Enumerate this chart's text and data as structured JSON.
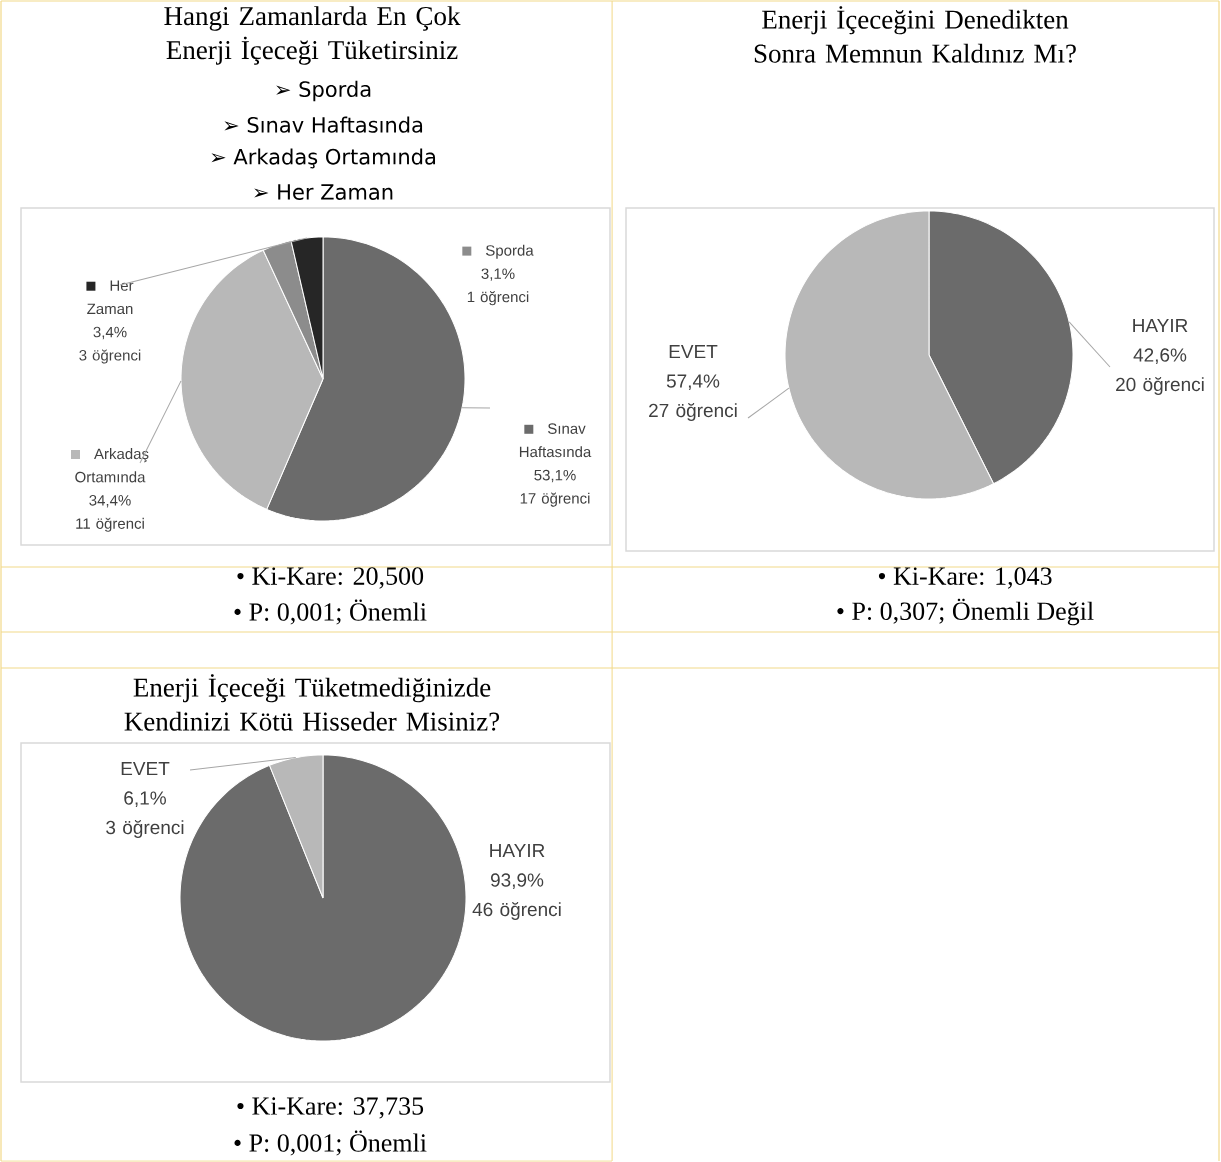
{
  "chart_data": [
    {
      "type": "pie",
      "title": "Hangi Zamanlarda En Çok Enerji İçeceği Tüketirsiniz",
      "categories": [
        "Sınav Haftasında",
        "Arkadaş Ortamında",
        "Sporda",
        "Her Zaman"
      ],
      "values": [
        53.1,
        34.4,
        3.1,
        3.4
      ],
      "colors": [
        "#6b6b6b",
        "#b8b8b8",
        "#8c8c8c",
        "#262626"
      ],
      "value_labels": [
        "53,1%",
        "34,4%",
        "3,1%",
        "3,4%"
      ],
      "legend": "right",
      "annotations": [
        "17 öğrenci",
        "11 öğrenci",
        "1 öğrenci",
        "3 öğrenci",
        "➢   Sporda",
        "➢   Sınav Haftasında",
        "➢   Arkadaş Ortamında",
        "➢   Her Zaman",
        "•     Ki-Kare: 20,500",
        "•     P: 0,001; Önemli"
      ]
    },
    {
      "type": "pie",
      "title": "Enerji İçeceğini Denedikten Sonra Memnun Kaldınız Mı?",
      "categories": [
        "HAYIR",
        "EVET"
      ],
      "values": [
        42.6,
        57.4
      ],
      "colors": [
        "#6b6b6b",
        "#b8b8b8"
      ],
      "value_labels": [
        "42,6%",
        "57,4%"
      ],
      "annotations": [
        "20 öğrenci",
        "27 öğrenci",
        "•     Ki-Kare: 1,043",
        "•     P: 0,307; Önemli Değil"
      ]
    },
    {
      "type": "pie",
      "title": "Enerji İçeceği Tüketmediğinizde Kendinizi Kötü Hisseder Misiniz?",
      "categories": [
        "HAYIR",
        "EVET"
      ],
      "values": [
        93.9,
        6.1
      ],
      "colors": [
        "#6b6b6b",
        "#b8b8b8"
      ],
      "value_labels": [
        "93,9%",
        "6,1%"
      ],
      "annotations": [
        "46 öğrenci",
        "3 öğrenci",
        "•     Ki-Kare: 37,735",
        "•     P: 0,001; Önemli"
      ]
    }
  ]
}
